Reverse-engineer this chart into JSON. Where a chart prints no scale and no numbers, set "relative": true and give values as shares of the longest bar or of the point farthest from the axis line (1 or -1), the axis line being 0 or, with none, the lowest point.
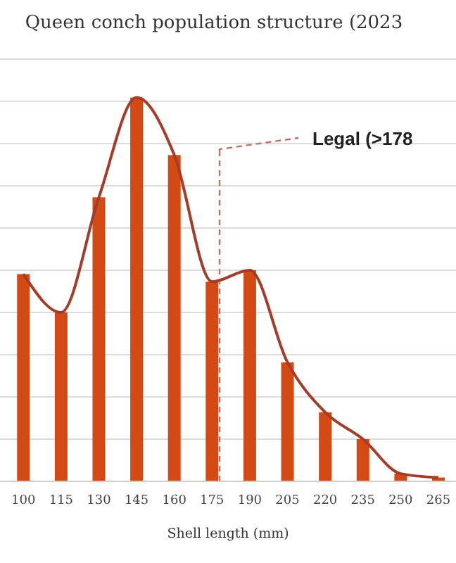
{
  "chart_data": {
    "type": "bar",
    "title": "Queen conch population structure (2023",
    "xlabel": "Shell length (mm)",
    "x": [
      100,
      115,
      130,
      145,
      160,
      175,
      190,
      205,
      220,
      235,
      250,
      265
    ],
    "xlim": [
      90.7,
      272
    ],
    "xticks": [
      100,
      115,
      130,
      145,
      160,
      175,
      190,
      205,
      220,
      235,
      250,
      265
    ],
    "relative": true,
    "grid": "y",
    "series": [
      {
        "color": "#d44a15",
        "values": [
          0.54,
          0.44,
          0.74,
          1,
          0.85,
          0.52,
          0.55,
          0.31,
          0.18,
          0.11,
          0.02,
          0.01
        ]
      },
      {
        "type": "line",
        "color": "#a33d2a",
        "values": [
          0.54,
          0.44,
          0.74,
          1,
          0.85,
          0.52,
          0.55,
          0.31,
          0.18,
          0.11,
          0.02,
          0.01
        ]
      }
    ],
    "ref_lines": [
      {
        "axis": "x",
        "value": 178,
        "label": "Legal (>178",
        "color": "#c0706a",
        "line_style": "dashed"
      }
    ]
  }
}
